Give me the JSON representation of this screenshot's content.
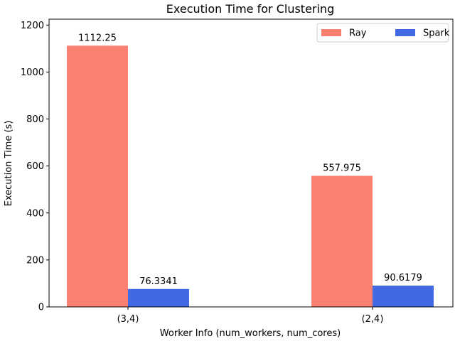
{
  "chart_data": {
    "type": "bar",
    "title": "Execution Time for Clustering",
    "xlabel": "Worker Info (num_workers, num_cores)",
    "ylabel": "Execution Time (s)",
    "categories": [
      "(3,4)",
      "(2,4)"
    ],
    "series": [
      {
        "name": "Ray",
        "values": [
          1112.25,
          557.975
        ],
        "labels": [
          "1112.25",
          "557.975"
        ],
        "color": "#fa8072"
      },
      {
        "name": "Spark",
        "values": [
          76.3341,
          90.6179
        ],
        "labels": [
          "76.3341",
          "90.6179"
        ],
        "color": "#4169e1"
      }
    ],
    "ylim": [
      0,
      1225
    ],
    "yticks": [
      0,
      200,
      400,
      600,
      800,
      1000,
      1200
    ],
    "legend": "top-right",
    "grid": false
  }
}
